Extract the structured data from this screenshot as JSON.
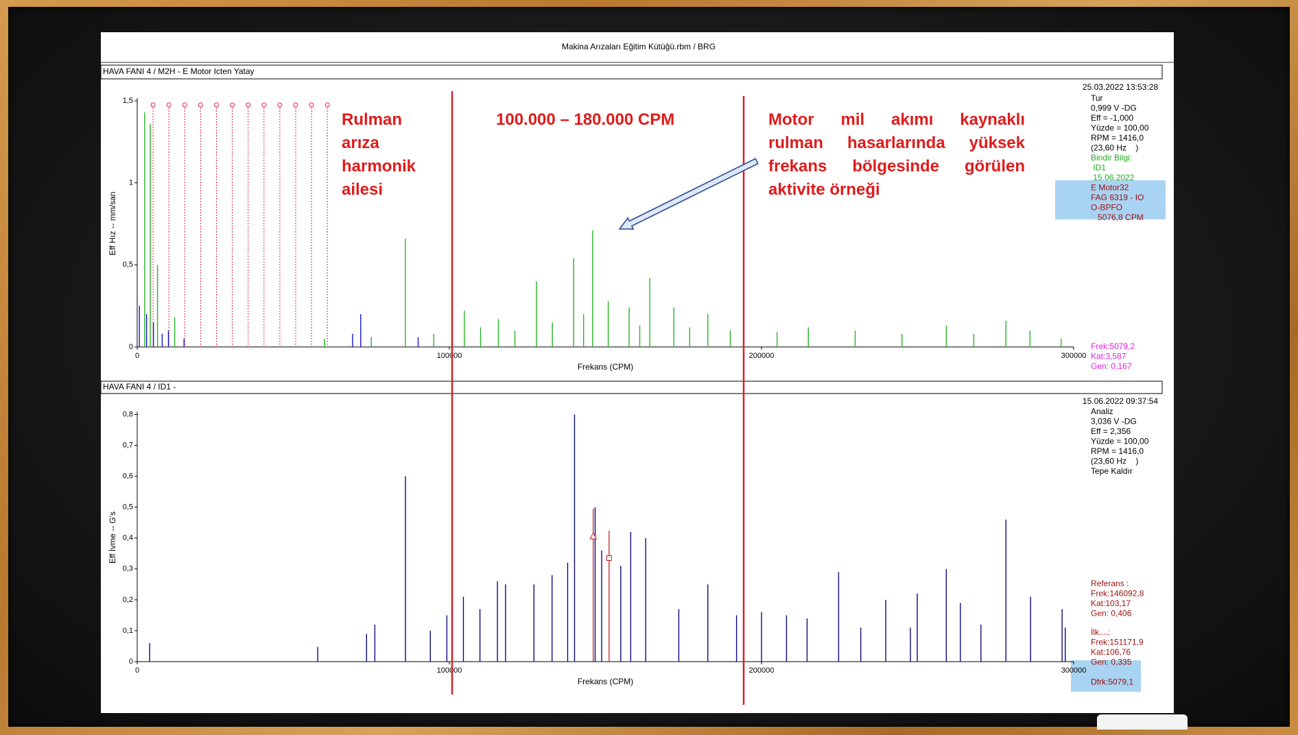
{
  "header": {
    "title": "Makina Arızaları Eğitim Kütüğü.rbm / BRG"
  },
  "annotations": {
    "harmonic_note": [
      "Rulman",
      "arıza",
      "harmonik",
      "ailesi"
    ],
    "range_note": "100.000 – 180.000 CPM",
    "activity_note": [
      "Motor mil akımı kaynaklı",
      "rulman hasarlarında yüksek",
      "frekans bölgesinde görülen",
      "aktivite örneği"
    ]
  },
  "chart_data": [
    {
      "type": "spectrum",
      "panel_title": "HAVA FANI 4 / M2H - E Motor Icten Yatay",
      "xlabel": "Frekans (CPM)",
      "ylabel": "Eff Hız -- mm/san",
      "xlim": [
        0,
        300000
      ],
      "xticks": [
        0,
        100000,
        200000,
        300000
      ],
      "ylim": [
        0,
        1.5
      ],
      "yticks": [
        0,
        {
          "value": 0.5,
          "label": "0,5"
        },
        1,
        {
          "value": 1.5,
          "label": "1,5"
        }
      ],
      "series": [
        {
          "color": "#22b422",
          "x": [
            2400,
            4200,
            6500,
            12000,
            60000,
            75000,
            85900,
            95000,
            104800,
            110000,
            115700,
            121000,
            127900,
            133000,
            139800,
            143000,
            145900,
            150900,
            157600,
            161000,
            164200,
            171900,
            177000,
            182800,
            190000,
            205000,
            215000,
            230000,
            245000,
            259200,
            268000,
            278300,
            286000,
            296000
          ],
          "values": [
            1.43,
            1.36,
            0.5,
            0.18,
            0.05,
            0.06,
            0.66,
            0.08,
            0.22,
            0.12,
            0.17,
            0.1,
            0.4,
            0.15,
            0.54,
            0.2,
            0.71,
            0.28,
            0.24,
            0.13,
            0.42,
            0.24,
            0.12,
            0.2,
            0.1,
            0.09,
            0.12,
            0.1,
            0.08,
            0.13,
            0.08,
            0.16,
            0.1,
            0.05
          ]
        },
        {
          "color": "#1414c8",
          "x": [
            700,
            3000,
            5200,
            8000,
            10000,
            15000,
            69000,
            71600,
            90000
          ],
          "values": [
            0.25,
            0.2,
            0.15,
            0.08,
            0.1,
            0.05,
            0.08,
            0.2,
            0.06
          ]
        }
      ],
      "harmonic_cursors": [
        5077,
        10154,
        15230,
        20307,
        25384,
        30461,
        35538,
        40614,
        45691,
        50768,
        55845,
        60922
      ],
      "info_date": "25.03.2022 13:53:28",
      "info_lines": [
        "Tur",
        "0,999 V -DG",
        "Eff = -1,000",
        "Yüzde = 100,00",
        "RPM = 1416,0",
        "(23,60 Hz    )"
      ],
      "overlay_lines": [
        "Bindir Bilgi:",
        " ID1",
        " 15.06.2022"
      ],
      "highlight_lines": [
        "E Motor32",
        "FAG 6319 - IO",
        "O-BPFO",
        "   5076,8 CPM"
      ],
      "cursor_lines": [
        "Frek:5079,2",
        "Kat:3,587",
        "Gen: 0,167"
      ]
    },
    {
      "type": "spectrum",
      "panel_title": "HAVA FANI 4 / ID1 -",
      "xlabel": "Frekans (CPM)",
      "ylabel": "Eff İvme -- G's",
      "xlim": [
        0,
        300000
      ],
      "xticks": [
        0,
        100000,
        200000,
        300000
      ],
      "ylim": [
        0,
        0.8
      ],
      "yticks": [
        0,
        {
          "value": 0.1,
          "label": "0,1"
        },
        {
          "value": 0.2,
          "label": "0,2"
        },
        {
          "value": 0.3,
          "label": "0,3"
        },
        {
          "value": 0.4,
          "label": "0,4"
        },
        {
          "value": 0.5,
          "label": "0,5"
        },
        {
          "value": 0.6,
          "label": "0,6"
        },
        {
          "value": 0.7,
          "label": "0,7"
        },
        {
          "value": 0.8,
          "label": "0,8"
        }
      ],
      "series": [
        {
          "color": "#0a0a80",
          "x": [
            3979,
            57825,
            73474,
            76127,
            85941,
            93900,
            99200,
            104500,
            109800,
            115400,
            118000,
            127100,
            132900,
            137900,
            140100,
            146700,
            148800,
            154900,
            158100,
            162900,
            173500,
            182800,
            192000,
            200000,
            208000,
            214600,
            224700,
            231800,
            239800,
            247700,
            249900,
            259200,
            263700,
            270300,
            278300,
            286200,
            296300,
            297300
          ],
          "values": [
            0.06,
            0.048,
            0.09,
            0.12,
            0.6,
            0.1,
            0.15,
            0.21,
            0.17,
            0.26,
            0.25,
            0.25,
            0.28,
            0.32,
            0.8,
            0.5,
            0.36,
            0.31,
            0.42,
            0.4,
            0.17,
            0.25,
            0.15,
            0.16,
            0.15,
            0.14,
            0.29,
            0.11,
            0.2,
            0.11,
            0.22,
            0.3,
            0.19,
            0.12,
            0.46,
            0.21,
            0.17,
            0.11
          ]
        }
      ],
      "cursors": [
        {
          "x": 146092.8,
          "value": 0.406,
          "marker": "triangle"
        },
        {
          "x": 151171.9,
          "value": 0.335,
          "marker": "square"
        }
      ],
      "info_date": "15.06.2022 09:37:54",
      "info_lines": [
        "Analiz",
        "3,036 V -DG",
        "Eff = 2,356",
        "Yüzde = 100,00",
        "RPM = 1416,0",
        "(23,60 Hz    )",
        "Tepe Kaldır"
      ],
      "reference_lines": [
        "Referans :",
        "Frek:146092,8",
        "Kat:103,17",
        "Gen: 0,406"
      ],
      "first_lines": [
        "İlk....:",
        "Frek:151171,9",
        "Kat:106,76",
        "Gen: 0,335"
      ],
      "difference_lines": [
        "Dfrk:5079,1"
      ]
    }
  ]
}
